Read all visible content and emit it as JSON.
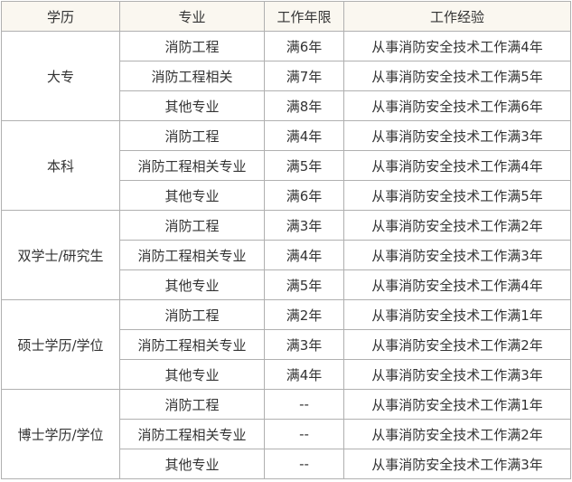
{
  "headers": [
    "学历",
    "专业",
    "工作年限",
    "工作经验"
  ],
  "groups": [
    {
      "degree": "大专",
      "rows": [
        [
          "消防工程",
          "满6年",
          "从事消防安全技术工作满4年"
        ],
        [
          "消防工程相关",
          "满7年",
          "从事消防安全技术工作满5年"
        ],
        [
          "其他专业",
          "满8年",
          "从事消防安全技术工作满6年"
        ]
      ]
    },
    {
      "degree": "本科",
      "rows": [
        [
          "消防工程",
          "满4年",
          "从事消防安全技术工作满3年"
        ],
        [
          "消防工程相关专业",
          "满5年",
          "从事消防安全技术工作满4年"
        ],
        [
          "其他专业",
          "满6年",
          "从事消防安全技术工作满5年"
        ]
      ]
    },
    {
      "degree": "双学士/研究生",
      "rows": [
        [
          "消防工程",
          "满3年",
          "从事消防安全技术工作满2年"
        ],
        [
          "消防工程相关专业",
          "满4年",
          "从事消防安全技术工作满3年"
        ],
        [
          "其他专业",
          "满5年",
          "从事消防安全技术工作满4年"
        ]
      ]
    },
    {
      "degree": "硕士学历/学位",
      "rows": [
        [
          "消防工程",
          "满2年",
          "从事消防安全技术工作满1年"
        ],
        [
          "消防工程相关专业",
          "满3年",
          "从事消防安全技术工作满2年"
        ],
        [
          "其他专业",
          "满4年",
          "从事消防安全技术工作满3年"
        ]
      ]
    },
    {
      "degree": "博士学历/学位",
      "rows": [
        [
          "消防工程",
          "--",
          "从事消防安全技术工作满1年"
        ],
        [
          "消防工程相关专业",
          "--",
          "从事消防安全技术工作满2年"
        ],
        [
          "其他专业",
          "--",
          "从事消防安全技术工作满3年"
        ]
      ]
    }
  ]
}
